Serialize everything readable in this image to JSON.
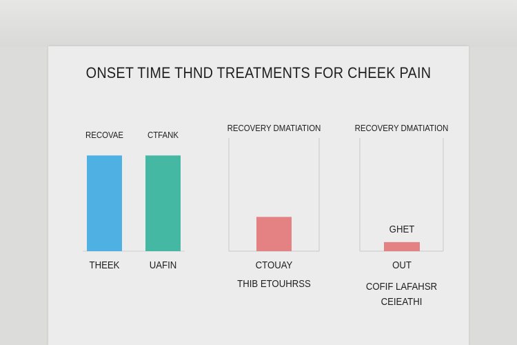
{
  "chart_data": {
    "title": "ONSET TIME THND TREATMENTS FOR CHEEK PAIN",
    "panels": [
      {
        "type": "bar",
        "title": "",
        "series_labels": [
          "RECOVAE",
          "CTFANK"
        ],
        "categories": [
          "THEEK",
          "UAFIN"
        ],
        "category_sublabels": [],
        "values": [
          95,
          95
        ],
        "colors": [
          "#4fb0e4",
          "#45b8a3"
        ],
        "ylim": [
          0,
          100
        ],
        "value_labels": [],
        "frame": false
      },
      {
        "type": "bar",
        "title": "RECOVERY DMATIATION",
        "series_labels": [],
        "categories": [
          "CTOUAY"
        ],
        "category_sublabels": [
          "THIB ETOUHRSS"
        ],
        "values": [
          34
        ],
        "colors": [
          "#e48283"
        ],
        "ylim": [
          0,
          100
        ],
        "value_labels": [],
        "frame": true
      },
      {
        "type": "bar",
        "title": "RECOVERY DMATIATION",
        "series_labels": [],
        "categories": [
          "OUT"
        ],
        "category_sublabels": [
          "COFIF LAFAHSR",
          "CEIEATHI"
        ],
        "values": [
          9
        ],
        "colors": [
          "#e48283"
        ],
        "ylim": [
          0,
          100
        ],
        "value_labels": [
          "GHET"
        ],
        "frame": true
      }
    ]
  }
}
